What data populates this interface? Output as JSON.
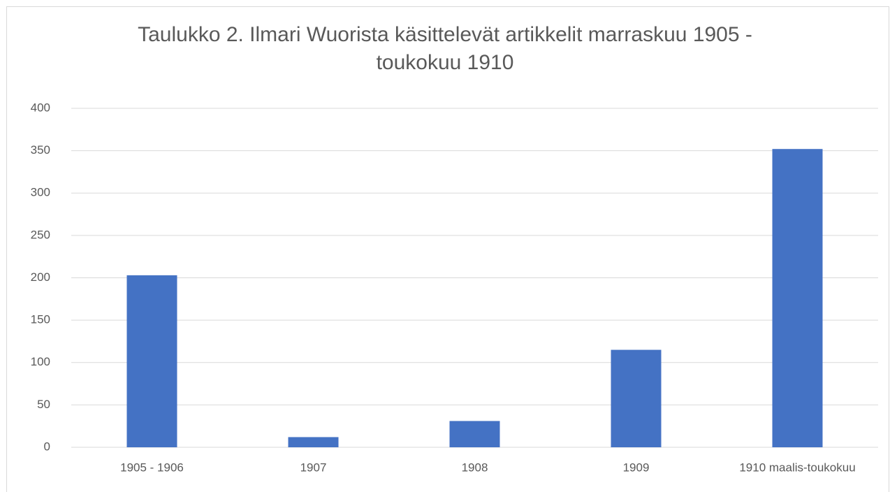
{
  "chart_data": {
    "type": "bar",
    "title": "Taulukko 2. Ilmari Wuorista käsittelevät artikkelit marraskuu 1905 - toukokuu 1910",
    "categories": [
      "1905 - 1906",
      "1907",
      "1908",
      "1909",
      "1910 maalis-toukokuu"
    ],
    "values": [
      203,
      12,
      31,
      115,
      352
    ],
    "color": "#4472c4",
    "ylim": [
      0,
      400
    ],
    "yticks": [
      0,
      50,
      100,
      150,
      200,
      250,
      300,
      350,
      400
    ],
    "grid": true
  }
}
